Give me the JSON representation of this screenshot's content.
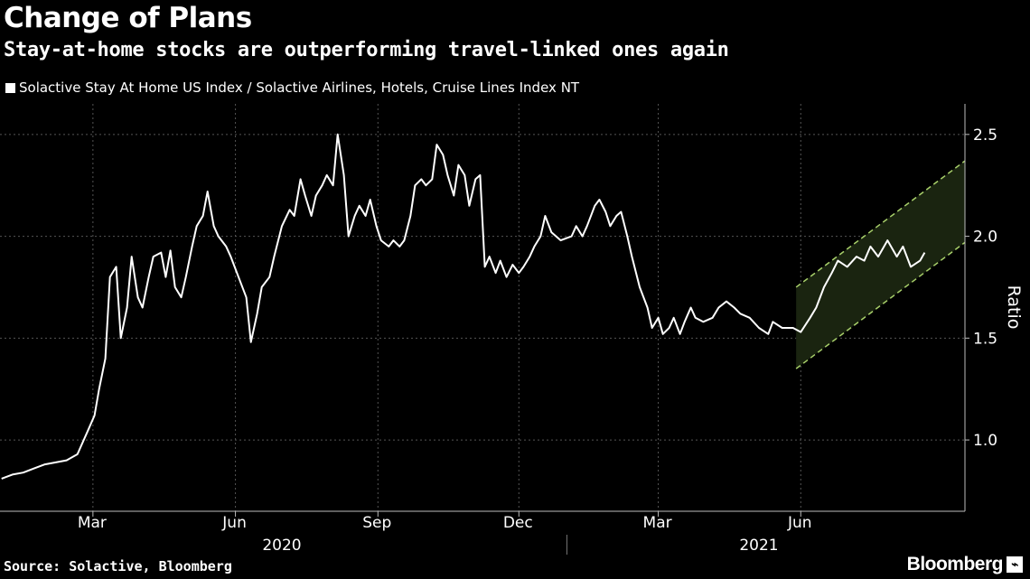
{
  "chart_data": {
    "type": "line",
    "title": "Change of Plans",
    "subtitle": "Stay-at-home stocks are outperforming travel-linked ones again",
    "series": [
      {
        "name": "Solactive Stay At Home US Index / Solactive Airlines, Hotels, Cruise Lines Index NT",
        "color": "#ffffff",
        "points": [
          [
            "2020-01-02",
            0.81
          ],
          [
            "2020-01-09",
            0.83
          ],
          [
            "2020-01-16",
            0.84
          ],
          [
            "2020-01-23",
            0.86
          ],
          [
            "2020-01-30",
            0.88
          ],
          [
            "2020-02-06",
            0.89
          ],
          [
            "2020-02-13",
            0.9
          ],
          [
            "2020-02-20",
            0.93
          ],
          [
            "2020-02-27",
            1.05
          ],
          [
            "2020-03-02",
            1.12
          ],
          [
            "2020-03-05",
            1.25
          ],
          [
            "2020-03-09",
            1.4
          ],
          [
            "2020-03-12",
            1.8
          ],
          [
            "2020-03-16",
            1.85
          ],
          [
            "2020-03-19",
            1.5
          ],
          [
            "2020-03-23",
            1.65
          ],
          [
            "2020-03-26",
            1.9
          ],
          [
            "2020-03-30",
            1.7
          ],
          [
            "2020-04-02",
            1.65
          ],
          [
            "2020-04-06",
            1.8
          ],
          [
            "2020-04-09",
            1.9
          ],
          [
            "2020-04-14",
            1.92
          ],
          [
            "2020-04-17",
            1.8
          ],
          [
            "2020-04-20",
            1.93
          ],
          [
            "2020-04-23",
            1.75
          ],
          [
            "2020-04-27",
            1.7
          ],
          [
            "2020-04-30",
            1.8
          ],
          [
            "2020-05-04",
            1.95
          ],
          [
            "2020-05-07",
            2.05
          ],
          [
            "2020-05-11",
            2.1
          ],
          [
            "2020-05-14",
            2.22
          ],
          [
            "2020-05-18",
            2.05
          ],
          [
            "2020-05-21",
            2.0
          ],
          [
            "2020-05-26",
            1.95
          ],
          [
            "2020-05-29",
            1.9
          ],
          [
            "2020-06-03",
            1.8
          ],
          [
            "2020-06-08",
            1.7
          ],
          [
            "2020-06-11",
            1.48
          ],
          [
            "2020-06-15",
            1.62
          ],
          [
            "2020-06-18",
            1.75
          ],
          [
            "2020-06-23",
            1.8
          ],
          [
            "2020-06-26",
            1.9
          ],
          [
            "2020-07-01",
            2.05
          ],
          [
            "2020-07-06",
            2.13
          ],
          [
            "2020-07-09",
            2.1
          ],
          [
            "2020-07-13",
            2.28
          ],
          [
            "2020-07-16",
            2.2
          ],
          [
            "2020-07-20",
            2.1
          ],
          [
            "2020-07-23",
            2.2
          ],
          [
            "2020-07-27",
            2.25
          ],
          [
            "2020-07-30",
            2.3
          ],
          [
            "2020-08-03",
            2.25
          ],
          [
            "2020-08-06",
            2.5
          ],
          [
            "2020-08-10",
            2.3
          ],
          [
            "2020-08-13",
            2.0
          ],
          [
            "2020-08-17",
            2.1
          ],
          [
            "2020-08-20",
            2.15
          ],
          [
            "2020-08-24",
            2.1
          ],
          [
            "2020-08-27",
            2.18
          ],
          [
            "2020-08-31",
            2.05
          ],
          [
            "2020-09-03",
            1.98
          ],
          [
            "2020-09-08",
            1.95
          ],
          [
            "2020-09-11",
            1.98
          ],
          [
            "2020-09-15",
            1.95
          ],
          [
            "2020-09-18",
            1.98
          ],
          [
            "2020-09-22",
            2.1
          ],
          [
            "2020-09-25",
            2.25
          ],
          [
            "2020-09-29",
            2.28
          ],
          [
            "2020-10-02",
            2.25
          ],
          [
            "2020-10-06",
            2.28
          ],
          [
            "2020-10-09",
            2.45
          ],
          [
            "2020-10-13",
            2.4
          ],
          [
            "2020-10-16",
            2.3
          ],
          [
            "2020-10-20",
            2.2
          ],
          [
            "2020-10-23",
            2.35
          ],
          [
            "2020-10-27",
            2.3
          ],
          [
            "2020-10-30",
            2.15
          ],
          [
            "2020-11-03",
            2.28
          ],
          [
            "2020-11-06",
            2.3
          ],
          [
            "2020-11-09",
            1.85
          ],
          [
            "2020-11-12",
            1.9
          ],
          [
            "2020-11-16",
            1.82
          ],
          [
            "2020-11-19",
            1.88
          ],
          [
            "2020-11-23",
            1.8
          ],
          [
            "2020-11-27",
            1.86
          ],
          [
            "2020-12-01",
            1.82
          ],
          [
            "2020-12-04",
            1.85
          ],
          [
            "2020-12-08",
            1.9
          ],
          [
            "2020-12-11",
            1.95
          ],
          [
            "2020-12-15",
            2.0
          ],
          [
            "2020-12-18",
            2.1
          ],
          [
            "2020-12-22",
            2.02
          ],
          [
            "2020-12-28",
            1.98
          ],
          [
            "2021-01-04",
            2.0
          ],
          [
            "2021-01-07",
            2.05
          ],
          [
            "2021-01-11",
            2.0
          ],
          [
            "2021-01-14",
            2.05
          ],
          [
            "2021-01-19",
            2.15
          ],
          [
            "2021-01-22",
            2.18
          ],
          [
            "2021-01-26",
            2.12
          ],
          [
            "2021-01-29",
            2.05
          ],
          [
            "2021-02-02",
            2.1
          ],
          [
            "2021-02-05",
            2.12
          ],
          [
            "2021-02-09",
            2.0
          ],
          [
            "2021-02-12",
            1.9
          ],
          [
            "2021-02-17",
            1.75
          ],
          [
            "2021-02-22",
            1.65
          ],
          [
            "2021-02-25",
            1.55
          ],
          [
            "2021-03-01",
            1.6
          ],
          [
            "2021-03-04",
            1.52
          ],
          [
            "2021-03-08",
            1.55
          ],
          [
            "2021-03-11",
            1.6
          ],
          [
            "2021-03-15",
            1.52
          ],
          [
            "2021-03-18",
            1.58
          ],
          [
            "2021-03-22",
            1.65
          ],
          [
            "2021-03-25",
            1.6
          ],
          [
            "2021-03-30",
            1.58
          ],
          [
            "2021-04-05",
            1.6
          ],
          [
            "2021-04-09",
            1.65
          ],
          [
            "2021-04-14",
            1.68
          ],
          [
            "2021-04-19",
            1.65
          ],
          [
            "2021-04-23",
            1.62
          ],
          [
            "2021-04-29",
            1.6
          ],
          [
            "2021-05-05",
            1.55
          ],
          [
            "2021-05-11",
            1.52
          ],
          [
            "2021-05-14",
            1.58
          ],
          [
            "2021-05-20",
            1.55
          ],
          [
            "2021-05-27",
            1.55
          ],
          [
            "2021-06-01",
            1.53
          ],
          [
            "2021-06-07",
            1.6
          ],
          [
            "2021-06-11",
            1.65
          ],
          [
            "2021-06-16",
            1.75
          ],
          [
            "2021-06-21",
            1.82
          ],
          [
            "2021-06-25",
            1.88
          ],
          [
            "2021-07-01",
            1.85
          ],
          [
            "2021-07-07",
            1.9
          ],
          [
            "2021-07-12",
            1.88
          ],
          [
            "2021-07-16",
            1.95
          ],
          [
            "2021-07-21",
            1.9
          ],
          [
            "2021-07-27",
            1.98
          ],
          [
            "2021-08-02",
            1.9
          ],
          [
            "2021-08-06",
            1.95
          ],
          [
            "2021-08-11",
            1.85
          ],
          [
            "2021-08-17",
            1.88
          ],
          [
            "2021-08-20",
            1.92
          ]
        ]
      }
    ],
    "channel": {
      "upper": [
        [
          "2021-05-29",
          1.75
        ],
        [
          "2021-09-15",
          2.37
        ]
      ],
      "lower": [
        [
          "2021-05-29",
          1.35
        ],
        [
          "2021-09-15",
          1.97
        ]
      ],
      "fill": "#1a2410",
      "stroke": "#a8d06a"
    },
    "x_ticks": [
      "Mar",
      "Jun",
      "Sep",
      "Dec",
      "Mar",
      "Jun"
    ],
    "x_tick_dates": [
      "2020-03-01",
      "2020-06-01",
      "2020-09-01",
      "2020-12-01",
      "2021-03-01",
      "2021-06-01"
    ],
    "year_labels": [
      "2020",
      "2021"
    ],
    "x_range": [
      "2020-01-01",
      "2021-09-15"
    ],
    "y_ticks": [
      "2.5",
      "2.0",
      "1.5",
      "1.0"
    ],
    "y_tick_values": [
      2.5,
      2.0,
      1.5,
      1.0
    ],
    "ylim": [
      0.65,
      2.65
    ],
    "ylabel": "Ratio",
    "grid": "dotted vertical at month ticks, dotted horizontal at y ticks",
    "legend_placement": "top-left",
    "background": "#000000"
  },
  "footer": {
    "source": "Source: Solactive, Bloomberg",
    "brand": "Bloomberg"
  }
}
